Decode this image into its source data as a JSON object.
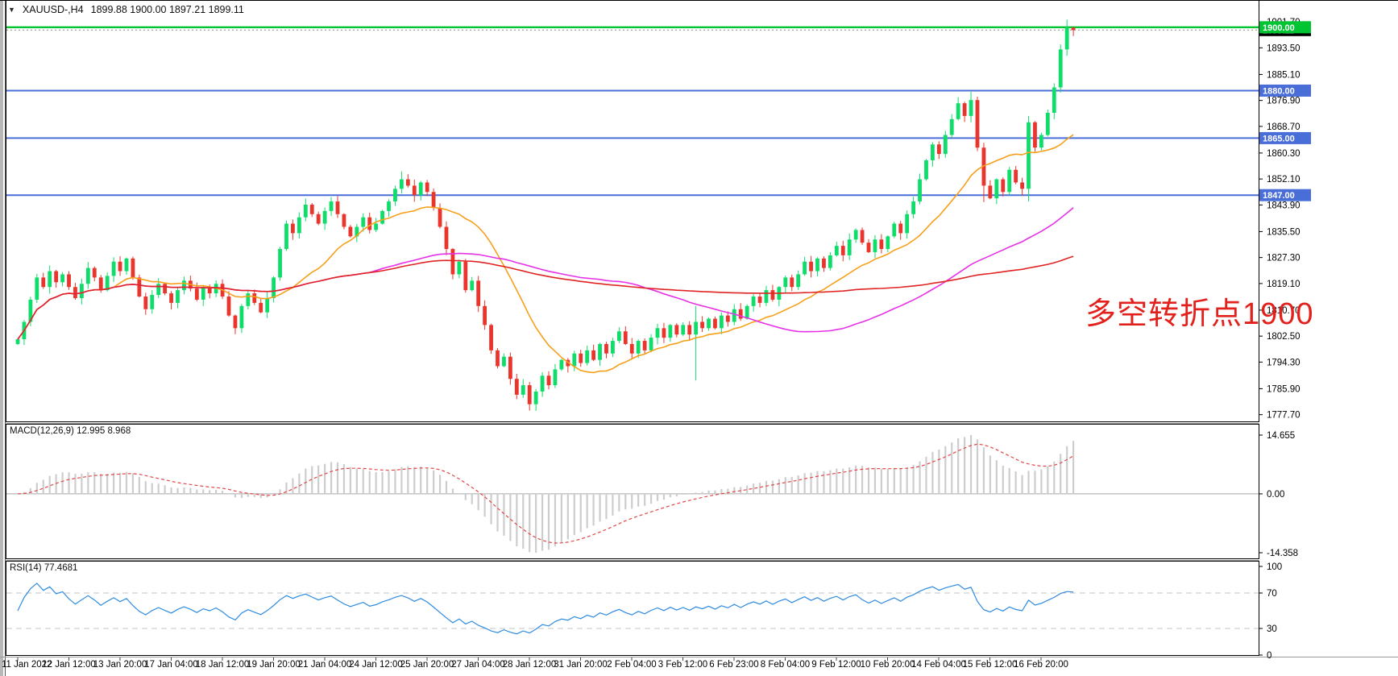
{
  "window": {
    "title_symbol": "XAUUSD-,H4",
    "title_ohlc": "1899.88 1900.00 1897.21 1899.11"
  },
  "annotation": {
    "text": "多空转折点1900",
    "color": "#e2211c"
  },
  "colors": {
    "bull": "#0edd6a",
    "bear": "#ea352c",
    "blue_line": "#4a6ed8",
    "green_line": "#00c432",
    "current_line": "#8a8a8a",
    "current_bg": "#000000",
    "ma_fast": "#f6a01a",
    "ma_mid": "#e632e6",
    "ma_slow": "#e02424",
    "macd_hist": "#cdcdcd",
    "macd_signal": "#e14747",
    "zero_line": "#a8a8a8",
    "rsi_line": "#2e8be0",
    "rsi_levels": "#c4c4c4",
    "axis_text": "#000000",
    "border": "#000000",
    "window_edge": "#b8b8b8"
  },
  "main_chart": {
    "hlines": [
      {
        "price": 1900.0,
        "label": "1900.00",
        "color": "#00c432",
        "width": 2.4
      },
      {
        "price": 1880.0,
        "label": "1880.00",
        "color": "#4a6ed8",
        "width": 2
      },
      {
        "price": 1865.0,
        "label": "1865.00",
        "color": "#4a6ed8",
        "width": 2
      },
      {
        "price": 1847.0,
        "label": "1847.00",
        "color": "#4a6ed8",
        "width": 2
      }
    ],
    "current_price": {
      "value": 1899.11,
      "label": "1899.11"
    }
  },
  "macd_panel": {
    "label": "MACD(12,26,9) 12.995 8.968"
  },
  "rsi_panel": {
    "label": "RSI(14) 77.4681"
  },
  "chart_data": {
    "type": "candlestick",
    "symbol": "XAUUSD-",
    "timeframe": "H4",
    "current_bar": {
      "open": 1899.88,
      "high": 1900.0,
      "low": 1897.21,
      "close": 1899.11
    },
    "first_open": 1800,
    "closes": [
      1801.5,
      1807,
      1814,
      1821,
      1818,
      1823,
      1819.5,
      1822,
      1818,
      1814.5,
      1819,
      1824,
      1821,
      1817,
      1821.5,
      1826,
      1823,
      1827,
      1821,
      1815,
      1811,
      1815.5,
      1819,
      1816,
      1813,
      1817,
      1820,
      1817.5,
      1814,
      1818,
      1816,
      1819,
      1815,
      1809,
      1805,
      1812,
      1816,
      1813,
      1810,
      1814.5,
      1821,
      1830,
      1838,
      1835,
      1840,
      1844,
      1841,
      1838,
      1842,
      1845,
      1841,
      1837,
      1834,
      1837,
      1840,
      1836,
      1838,
      1842,
      1845,
      1849,
      1852,
      1850,
      1847,
      1851,
      1848,
      1843,
      1837,
      1830,
      1822,
      1826,
      1817,
      1820,
      1812,
      1806,
      1798,
      1793,
      1796,
      1789,
      1784,
      1787,
      1781,
      1785,
      1790,
      1787,
      1792,
      1795,
      1793,
      1797,
      1794,
      1798,
      1795,
      1800,
      1797,
      1801,
      1804,
      1800,
      1797,
      1801,
      1798,
      1802,
      1805,
      1802,
      1806,
      1803,
      1806,
      1803,
      1807,
      1805,
      1808,
      1805,
      1809,
      1807,
      1811,
      1808,
      1812,
      1815,
      1813,
      1817,
      1814,
      1818,
      1821,
      1818,
      1822,
      1826,
      1823,
      1827,
      1824,
      1828,
      1831,
      1828,
      1833,
      1836,
      1832,
      1829,
      1833,
      1830,
      1834,
      1838,
      1835,
      1841,
      1845,
      1852,
      1858,
      1863,
      1860,
      1866,
      1871,
      1876,
      1872,
      1877,
      1862,
      1850,
      1846,
      1852,
      1848,
      1855,
      1851,
      1849,
      1870,
      1862,
      1866,
      1873,
      1881,
      1893,
      1899.9,
      1899.11
    ],
    "candle_overrides": {
      "60": [
        1849,
        1854.5,
        1847.5,
        1852
      ],
      "80": [
        1787,
        1788,
        1779,
        1781
      ],
      "106": [
        1803,
        1812,
        1788.5,
        1807
      ],
      "149": [
        1872,
        1879.6,
        1870,
        1877
      ],
      "151": [
        1862,
        1863.5,
        1844.8,
        1850
      ],
      "158": [
        1849,
        1872,
        1845,
        1870
      ],
      "164": [
        1893,
        1902.4,
        1891,
        1899.9
      ],
      "165": [
        1899.88,
        1900.0,
        1897.21,
        1899.11
      ]
    },
    "horizontal_levels": [
      1900.0,
      1880.0,
      1865.0,
      1847.0
    ],
    "price_axis": {
      "ticks": [
        "1901.70",
        "1893.50",
        "1885.10",
        "1876.90",
        "1868.70",
        "1860.30",
        "1852.10",
        "1843.90",
        "1835.50",
        "1827.30",
        "1819.10",
        "1810.70",
        "1802.50",
        "1794.30",
        "1785.90",
        "1777.70"
      ],
      "min": 1777.7,
      "max": 1901.7
    },
    "time_labels": [
      "11 Jan 2022",
      "12 Jan 12:00",
      "13 Jan 20:00",
      "17 Jan 04:00",
      "18 Jan 12:00",
      "19 Jan 20:00",
      "21 Jan 04:00",
      "24 Jan 12:00",
      "25 Jan 20:00",
      "27 Jan 04:00",
      "28 Jan 12:00",
      "31 Jan 20:00",
      "2 Feb 04:00",
      "3 Feb 12:00",
      "6 Feb 23:00",
      "8 Feb 04:00",
      "9 Feb 12:00",
      "10 Feb 20:00",
      "14 Feb 04:00",
      "15 Feb 12:00",
      "16 Feb 20:00"
    ],
    "moving_averages": [
      {
        "name": "ma-fast",
        "window": 16,
        "color": "#f6a01a"
      },
      {
        "name": "ma-mid",
        "window": 56,
        "color": "#e632e6"
      },
      {
        "name": "ma-slow",
        "window": 130,
        "color": "#e02424"
      }
    ],
    "indicators": {
      "macd": {
        "fast": 12,
        "slow": 26,
        "signal": 9,
        "value": 12.995,
        "signal_value": 8.968,
        "axis_ticks": [
          "14.655",
          "0.00",
          "-14.358"
        ]
      },
      "rsi": {
        "period": 14,
        "value": 77.4681,
        "levels": [
          70,
          30
        ],
        "axis_ticks": [
          100,
          70,
          30,
          0
        ]
      }
    }
  }
}
